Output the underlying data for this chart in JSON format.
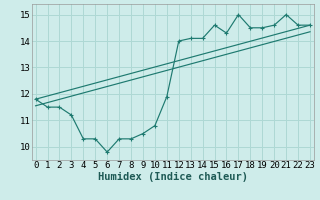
{
  "xlabel": "Humidex (Indice chaleur)",
  "bg_color": "#ceecea",
  "line_color": "#1e7a70",
  "grid_color": "#aed8d4",
  "x_data": [
    0,
    1,
    2,
    3,
    4,
    5,
    6,
    7,
    8,
    9,
    10,
    11,
    12,
    13,
    14,
    15,
    16,
    17,
    18,
    19,
    20,
    21,
    22,
    23
  ],
  "y_data": [
    11.8,
    11.5,
    11.5,
    11.2,
    10.3,
    10.3,
    9.8,
    10.3,
    10.3,
    10.5,
    10.8,
    11.9,
    14.0,
    14.1,
    14.1,
    14.6,
    14.3,
    15.0,
    14.5,
    14.5,
    14.6,
    15.0,
    14.6,
    14.6
  ],
  "line1_x": [
    0,
    23
  ],
  "line1_y": [
    11.8,
    14.6
  ],
  "line2_x": [
    0,
    23
  ],
  "line2_y": [
    11.55,
    14.35
  ],
  "xlim": [
    -0.3,
    23.3
  ],
  "ylim": [
    9.5,
    15.4
  ],
  "xticks": [
    0,
    1,
    2,
    3,
    4,
    5,
    6,
    7,
    8,
    9,
    10,
    11,
    12,
    13,
    14,
    15,
    16,
    17,
    18,
    19,
    20,
    21,
    22,
    23
  ],
  "yticks": [
    10,
    11,
    12,
    13,
    14,
    15
  ],
  "tick_fontsize": 6.5,
  "xlabel_fontsize": 7.5
}
